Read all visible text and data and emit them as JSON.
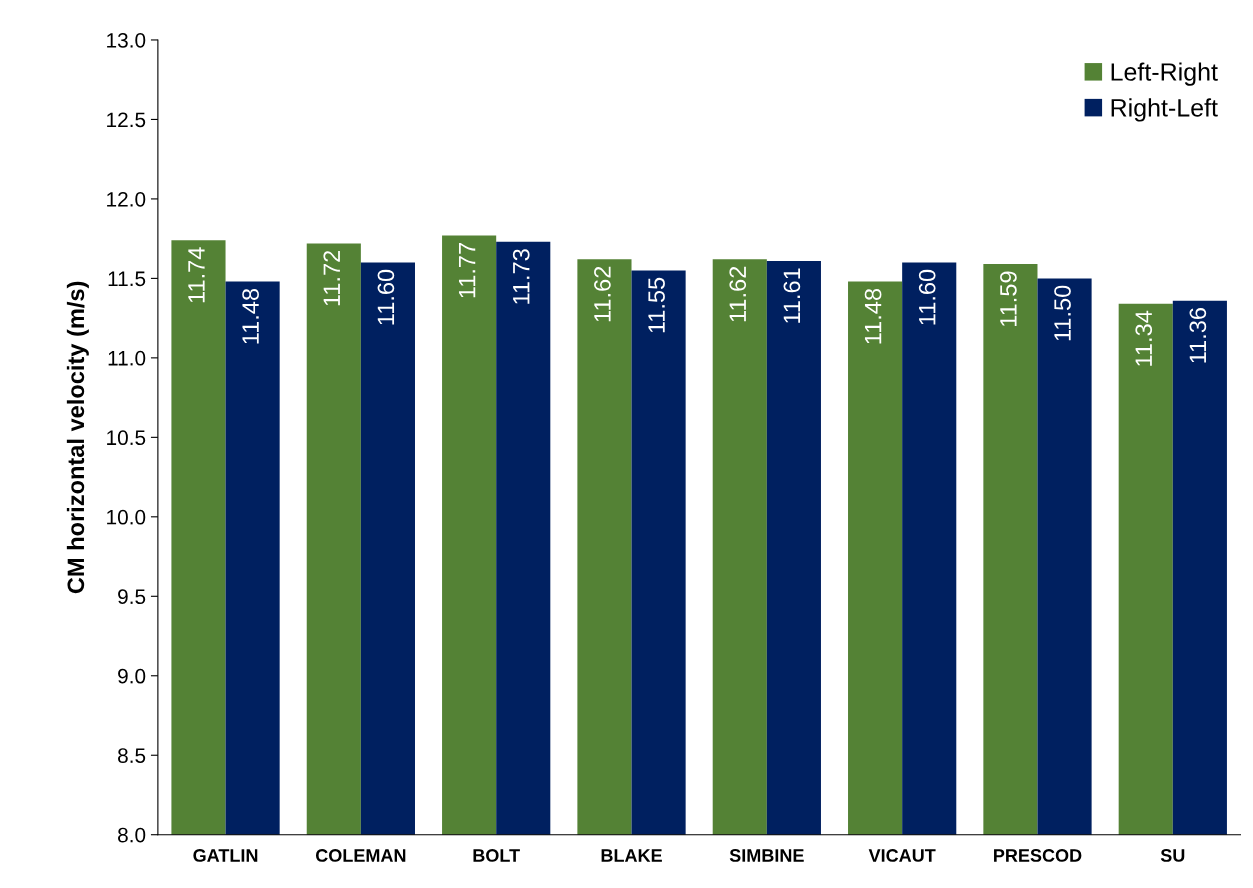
{
  "chart_data": {
    "type": "bar",
    "ylabel": "CM horizontal velocity (m/s)",
    "categories": [
      "GATLIN",
      "COLEMAN",
      "BOLT",
      "BLAKE",
      "SIMBINE",
      "VICAUT",
      "PRESCOD",
      "SU"
    ],
    "series": [
      {
        "name": "Left-Right",
        "color": "#548235",
        "values": [
          11.74,
          11.72,
          11.77,
          11.62,
          11.62,
          11.48,
          11.59,
          11.34
        ],
        "value_labels": [
          "11.74",
          "11.72",
          "11.77",
          "11.62",
          "11.62",
          "11.48",
          "11.59",
          "11.34"
        ]
      },
      {
        "name": "Right-Left",
        "color": "#002060",
        "values": [
          11.48,
          11.6,
          11.73,
          11.55,
          11.61,
          11.6,
          11.5,
          11.36
        ],
        "value_labels": [
          "11.48",
          "11.60",
          "11.73",
          "11.55",
          "11.61",
          "11.60",
          "11.50",
          "11.36"
        ]
      }
    ],
    "ylim": [
      8,
      13
    ],
    "yticks": [
      {
        "value": 8,
        "label": "8.0"
      },
      {
        "value": 8.5,
        "label": "8.5"
      },
      {
        "value": 9,
        "label": "9.0"
      },
      {
        "value": 9.5,
        "label": "9.5"
      },
      {
        "value": 10,
        "label": "10.0"
      },
      {
        "value": 10.5,
        "label": "10.5"
      },
      {
        "value": 11,
        "label": "11.0"
      },
      {
        "value": 11.5,
        "label": "11.5"
      },
      {
        "value": 12,
        "label": "12.0"
      },
      {
        "value": 12.5,
        "label": "12.5"
      },
      {
        "value": 13,
        "label": "13.0"
      }
    ],
    "grid": false,
    "legend": "top right"
  }
}
